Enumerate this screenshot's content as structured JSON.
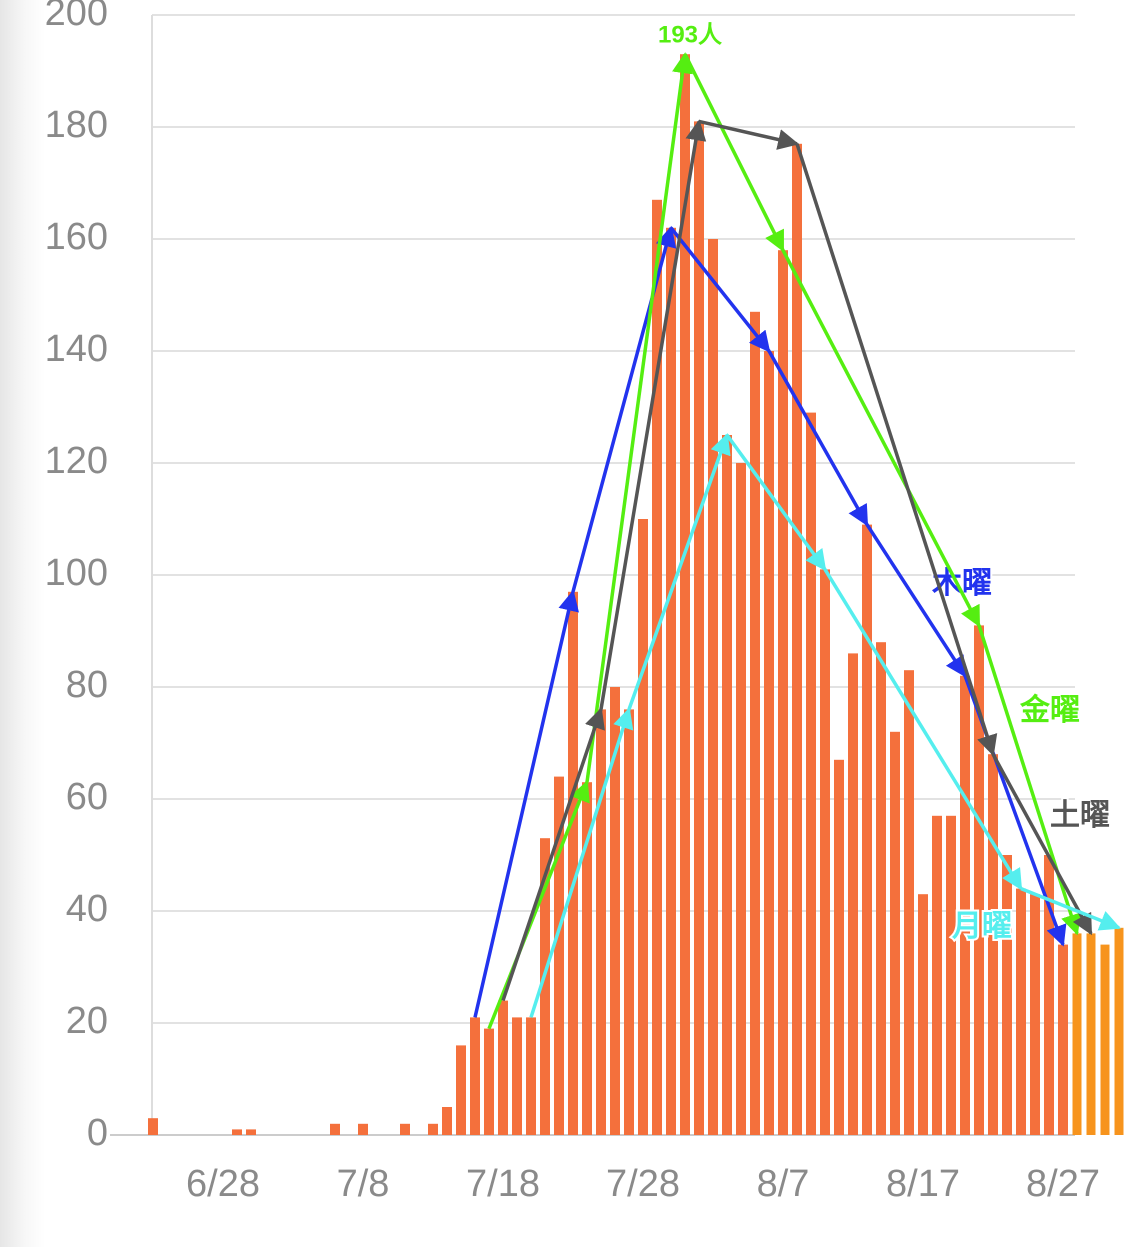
{
  "chart_data": {
    "type": "bar",
    "categories": [
      null,
      null,
      null,
      null,
      null,
      "6/28",
      null,
      null,
      null,
      null,
      null,
      null,
      null,
      null,
      null,
      "7/8",
      null,
      null,
      null,
      null,
      null,
      null,
      null,
      null,
      null,
      "7/18",
      null,
      null,
      null,
      null,
      null,
      null,
      null,
      null,
      null,
      "7/28",
      null,
      null,
      null,
      null,
      null,
      null,
      null,
      null,
      null,
      "8/7",
      null,
      null,
      null,
      null,
      null,
      null,
      null,
      null,
      null,
      "8/17",
      null,
      null,
      null,
      null,
      null,
      null,
      null,
      null,
      null,
      "8/27",
      null,
      null,
      null,
      null
    ],
    "series": [
      {
        "color": "#f4703c",
        "values": [
          3,
          0,
          0,
          0,
          0,
          0,
          1,
          1,
          0,
          0,
          0,
          0,
          0,
          2,
          0,
          2,
          0,
          0,
          2,
          0,
          2,
          5,
          16,
          21,
          19,
          24,
          21,
          21,
          53,
          64,
          97,
          63,
          76,
          80,
          76,
          110,
          167,
          162,
          193,
          181,
          160,
          125,
          120,
          147,
          140,
          158,
          177,
          129,
          101,
          67,
          86,
          109,
          88,
          72,
          83,
          43,
          57,
          57,
          82,
          91,
          68,
          50,
          44,
          43,
          50,
          34,
          null,
          null,
          null,
          null
        ]
      },
      {
        "color": "#f7941d",
        "values": [
          null,
          null,
          null,
          null,
          null,
          null,
          null,
          null,
          null,
          null,
          null,
          null,
          null,
          null,
          null,
          null,
          null,
          null,
          null,
          null,
          null,
          null,
          null,
          null,
          null,
          null,
          null,
          null,
          null,
          null,
          null,
          null,
          null,
          null,
          null,
          null,
          null,
          null,
          null,
          null,
          null,
          null,
          null,
          null,
          null,
          null,
          null,
          null,
          null,
          null,
          null,
          null,
          null,
          null,
          null,
          null,
          null,
          null,
          null,
          null,
          null,
          null,
          null,
          null,
          null,
          null,
          36,
          36,
          34,
          37
        ]
      }
    ],
    "trend_lines": [
      {
        "name": "木曜",
        "color": "#2233ee",
        "values": [
          null,
          null,
          null,
          null,
          null,
          null,
          null,
          null,
          null,
          null,
          null,
          null,
          null,
          null,
          null,
          null,
          null,
          null,
          null,
          null,
          null,
          null,
          null,
          21,
          null,
          null,
          null,
          null,
          null,
          null,
          97,
          null,
          null,
          null,
          null,
          null,
          null,
          162,
          null,
          null,
          null,
          null,
          null,
          null,
          140,
          null,
          null,
          null,
          null,
          null,
          null,
          109,
          null,
          null,
          null,
          null,
          null,
          null,
          82,
          null,
          null,
          null,
          null,
          null,
          null,
          34,
          null,
          null,
          null,
          null
        ]
      },
      {
        "name": "金曜",
        "color": "#55ee11",
        "values": [
          null,
          null,
          null,
          null,
          null,
          null,
          null,
          null,
          null,
          null,
          null,
          null,
          null,
          null,
          null,
          null,
          null,
          null,
          null,
          null,
          null,
          null,
          null,
          null,
          19,
          null,
          null,
          null,
          null,
          null,
          null,
          63,
          null,
          null,
          null,
          null,
          null,
          null,
          193,
          null,
          null,
          null,
          null,
          null,
          null,
          158,
          null,
          null,
          null,
          null,
          null,
          null,
          null,
          null,
          null,
          null,
          null,
          null,
          null,
          91,
          null,
          null,
          null,
          null,
          null,
          null,
          36,
          null,
          null,
          null
        ]
      },
      {
        "name": "土曜",
        "color": "#555555",
        "values": [
          null,
          null,
          null,
          null,
          null,
          null,
          null,
          null,
          null,
          null,
          null,
          null,
          null,
          null,
          null,
          null,
          null,
          null,
          null,
          null,
          null,
          null,
          null,
          null,
          null,
          24,
          null,
          null,
          null,
          null,
          null,
          null,
          76,
          null,
          null,
          null,
          null,
          null,
          null,
          181,
          null,
          null,
          null,
          null,
          null,
          null,
          177,
          null,
          null,
          null,
          null,
          null,
          null,
          null,
          null,
          null,
          null,
          null,
          null,
          null,
          68,
          null,
          null,
          null,
          null,
          null,
          null,
          36,
          null,
          null
        ]
      },
      {
        "name": "月曜",
        "color": "#55eeee",
        "values": [
          null,
          null,
          null,
          null,
          null,
          null,
          null,
          null,
          null,
          null,
          null,
          null,
          null,
          null,
          null,
          null,
          null,
          null,
          null,
          null,
          null,
          null,
          null,
          null,
          null,
          null,
          null,
          21,
          null,
          null,
          null,
          null,
          null,
          null,
          76,
          null,
          null,
          null,
          null,
          null,
          null,
          125,
          null,
          null,
          null,
          null,
          null,
          null,
          101,
          null,
          null,
          null,
          null,
          null,
          null,
          null,
          null,
          null,
          null,
          null,
          null,
          null,
          44,
          null,
          null,
          null,
          null,
          null,
          null,
          37
        ]
      }
    ],
    "annotations": [
      {
        "text": "193人",
        "color": "#55ee11"
      }
    ],
    "ylim": [
      0,
      200
    ],
    "yticks": [
      0,
      20,
      40,
      60,
      80,
      100,
      120,
      140,
      160,
      180,
      200
    ],
    "grid": true
  }
}
